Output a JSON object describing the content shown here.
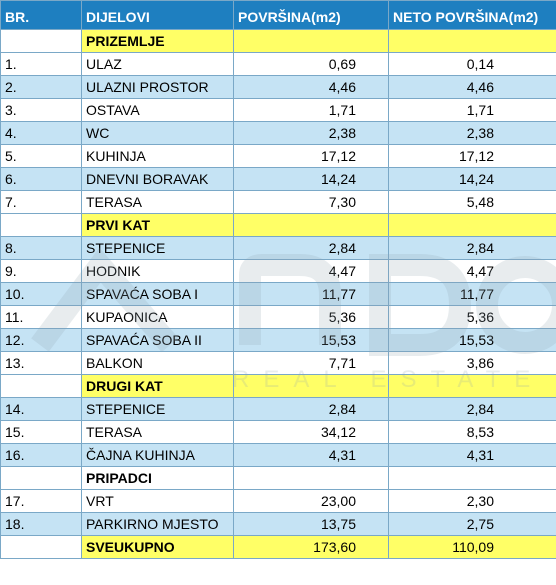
{
  "headers": [
    "BR.",
    "DIJELOVI",
    "POVRŠINA(m2)",
    "NETO POVRŠINA(m2)"
  ],
  "sections": [
    {
      "title": "PRIZEMLJE",
      "rows": [
        {
          "no": "1.",
          "name": "ULAZ",
          "area": "0,69",
          "net": "0,14"
        },
        {
          "no": "2.",
          "name": "ULAZNI PROSTOR",
          "area": "4,46",
          "net": "4,46"
        },
        {
          "no": "3.",
          "name": "OSTAVA",
          "area": "1,71",
          "net": "1,71"
        },
        {
          "no": "4.",
          "name": "WC",
          "area": "2,38",
          "net": "2,38"
        },
        {
          "no": "5.",
          "name": "KUHINJA",
          "area": "17,12",
          "net": "17,12"
        },
        {
          "no": "6.",
          "name": "DNEVNI BORAVAK",
          "area": "14,24",
          "net": "14,24"
        },
        {
          "no": "7.",
          "name": "TERASA",
          "area": "7,30",
          "net": "5,48"
        }
      ]
    },
    {
      "title": "PRVI KAT",
      "rows": [
        {
          "no": "8.",
          "name": "STEPENICE",
          "area": "2,84",
          "net": "2,84"
        },
        {
          "no": "9.",
          "name": "HODNIK",
          "area": "4,47",
          "net": "4,47"
        },
        {
          "no": "10.",
          "name": "SPAVAĆA SOBA I",
          "area": "11,77",
          "net": "11,77"
        },
        {
          "no": "11.",
          "name": "KUPAONICA",
          "area": "5,36",
          "net": "5,36"
        },
        {
          "no": "12.",
          "name": "SPAVAĆA SOBA II",
          "area": "15,53",
          "net": "15,53"
        },
        {
          "no": "13.",
          "name": "BALKON",
          "area": "7,71",
          "net": "3,86"
        }
      ]
    },
    {
      "title": "DRUGI KAT",
      "rows": [
        {
          "no": "14.",
          "name": "STEPENICE",
          "area": "2,84",
          "net": "2,84"
        },
        {
          "no": "15.",
          "name": "TERASA",
          "area": "34,12",
          "net": "8,53"
        },
        {
          "no": "16.",
          "name": "ČAJNA KUHINJA",
          "area": "4,31",
          "net": "4,31"
        }
      ]
    },
    {
      "title": "PRIPADCI",
      "rows": [
        {
          "no": "17.",
          "name": "VRT",
          "area": "23,00",
          "net": "2,30"
        },
        {
          "no": "18.",
          "name": "PARKIRNO MJESTO",
          "area": "13,75",
          "net": "2,75"
        }
      ]
    }
  ],
  "total": {
    "label": "SVEUKUPNO",
    "area": "173,60",
    "net": "110,09"
  },
  "watermark": {
    "subtitle": "REAL ESTATE"
  },
  "colors": {
    "header": "#1e7fc0",
    "band": "#c5e3f4",
    "highlight": "#ffff66"
  }
}
